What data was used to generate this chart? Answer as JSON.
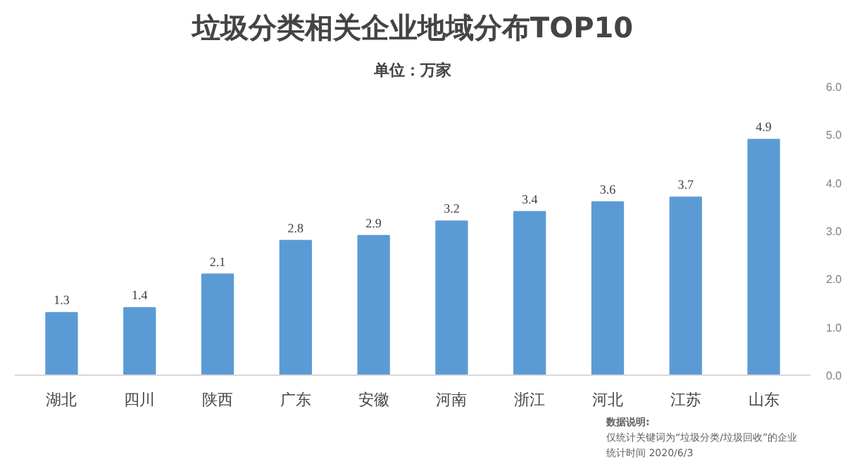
{
  "chart_data": {
    "type": "bar",
    "title": "垃圾分类相关企业地域分布TOP10",
    "subtitle": "单位：万家",
    "categories": [
      "湖北",
      "四川",
      "陕西",
      "广东",
      "安徽",
      "河南",
      "浙江",
      "河北",
      "江苏",
      "山东"
    ],
    "values": [
      1.3,
      1.4,
      2.1,
      2.8,
      2.9,
      3.2,
      3.4,
      3.6,
      3.7,
      4.9
    ],
    "color": "#5b9bd5",
    "data_labels": true,
    "ylim": [
      0,
      6
    ],
    "yticks": [
      {
        "value": 0,
        "label": "0.0"
      },
      {
        "value": 1,
        "label": "1.0"
      },
      {
        "value": 2,
        "label": "2.0"
      },
      {
        "value": 3,
        "label": "3.0"
      },
      {
        "value": 4,
        "label": "4.0"
      },
      {
        "value": 5,
        "label": "5.0"
      },
      {
        "value": 6,
        "label": "6.0"
      }
    ],
    "grid": false,
    "annotations": [
      "数据说明:",
      "仅统计关键词为“垃圾分类/垃圾回收”的企业",
      "统计时间 2020/6/3"
    ]
  }
}
